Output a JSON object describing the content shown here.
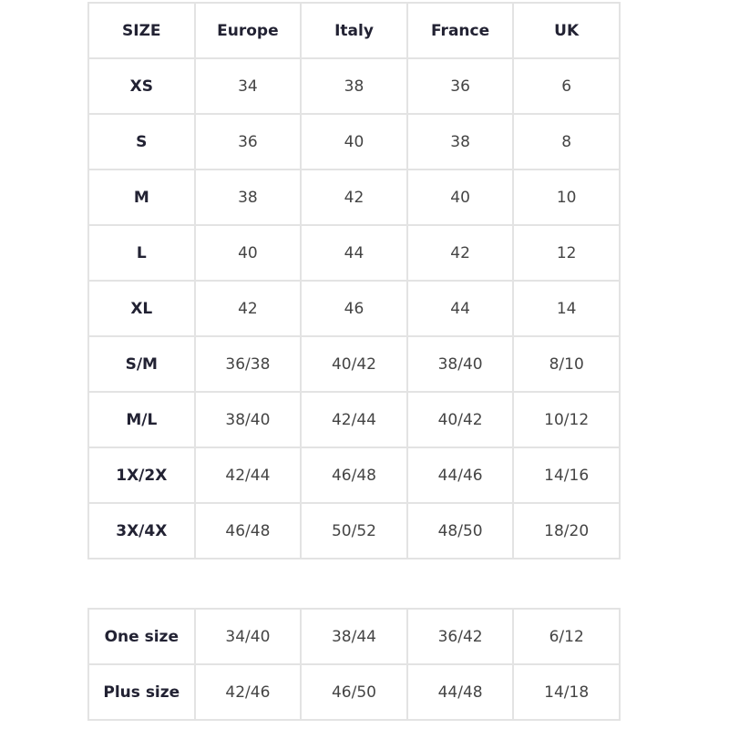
{
  "size_chart": {
    "headers": [
      "SIZE",
      "Europe",
      "Italy",
      "France",
      "UK"
    ],
    "rows": [
      [
        "XS",
        "34",
        "38",
        "36",
        "6"
      ],
      [
        "S",
        "36",
        "40",
        "38",
        "8"
      ],
      [
        "M",
        "38",
        "42",
        "40",
        "10"
      ],
      [
        "L",
        "40",
        "44",
        "42",
        "12"
      ],
      [
        "XL",
        "42",
        "46",
        "44",
        "14"
      ],
      [
        "S/M",
        "36/38",
        "40/42",
        "38/40",
        "8/10"
      ],
      [
        "M/L",
        "38/40",
        "42/44",
        "40/42",
        "10/12"
      ],
      [
        "1X/2X",
        "42/44",
        "46/48",
        "44/46",
        "14/16"
      ],
      [
        "3X/4X",
        "46/48",
        "50/52",
        "48/50",
        "18/20"
      ]
    ]
  },
  "special_sizes": {
    "rows": [
      [
        "One size",
        "34/40",
        "38/44",
        "36/42",
        "6/12"
      ],
      [
        "Plus size",
        "42/46",
        "46/50",
        "44/48",
        "14/18"
      ]
    ]
  }
}
